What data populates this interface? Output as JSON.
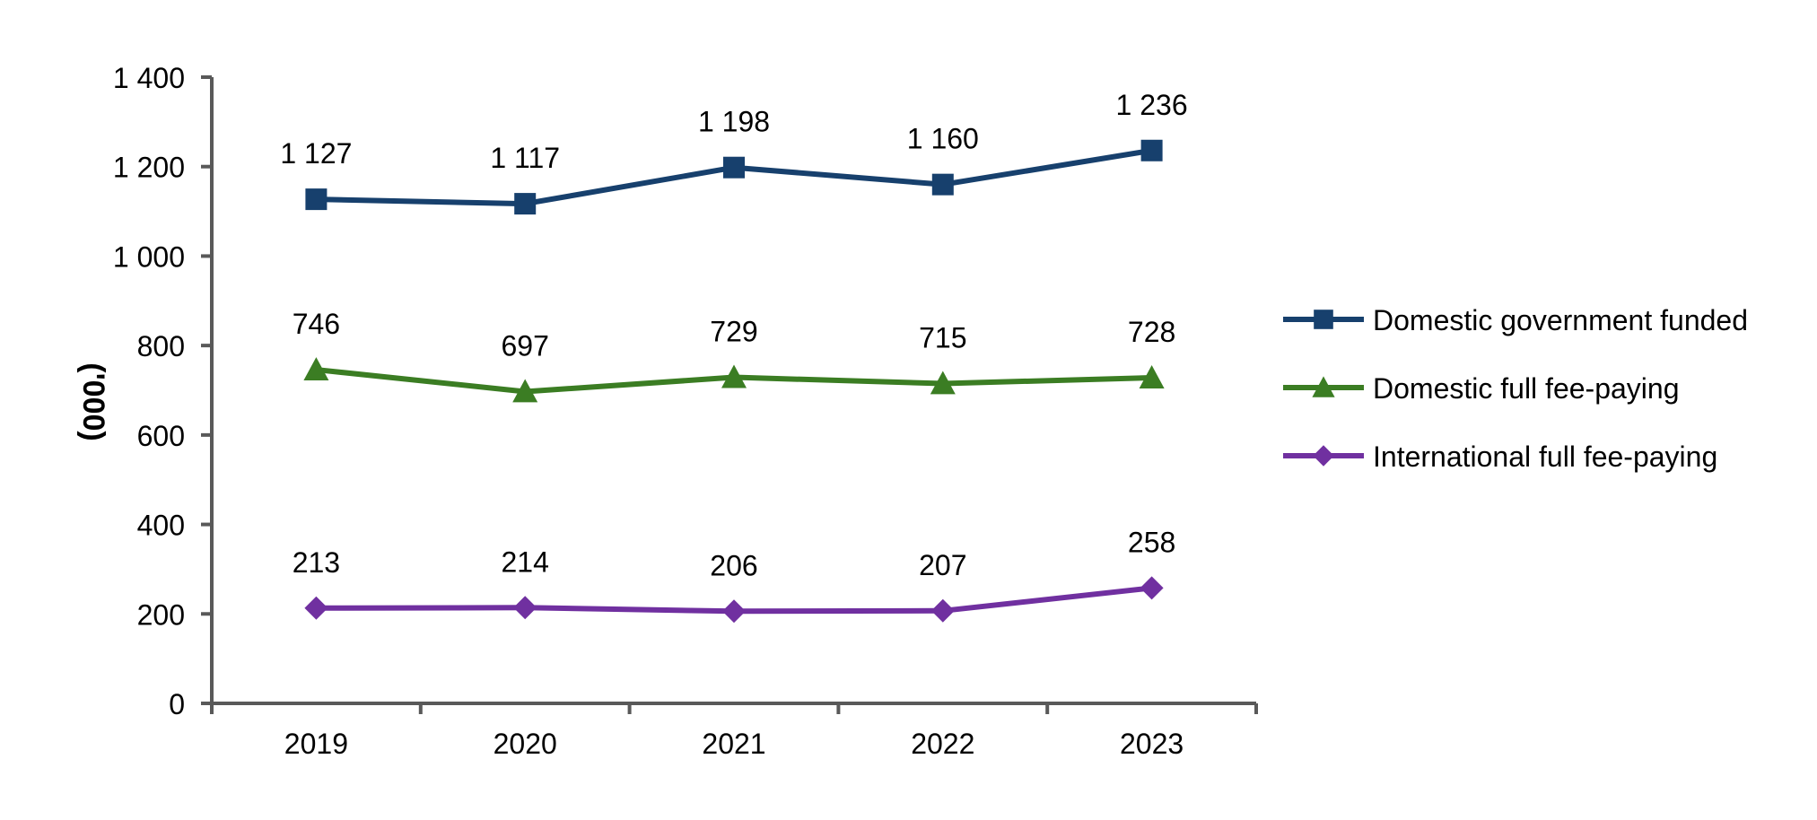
{
  "chart_data": {
    "type": "line",
    "title": "",
    "xlabel": "",
    "ylabel": "('000)",
    "ylim": [
      0,
      1400
    ],
    "yticks": [
      0,
      200,
      400,
      600,
      800,
      1000,
      1200,
      1400
    ],
    "ytick_labels": [
      "0",
      "200",
      "400",
      "600",
      "800",
      "1 000",
      "1 200",
      "1 400"
    ],
    "categories": [
      "2019",
      "2020",
      "2021",
      "2022",
      "2023"
    ],
    "grid": false,
    "legend_position": "right",
    "series": [
      {
        "name": "Domestic government funded",
        "values": [
          1127,
          1117,
          1198,
          1160,
          1236
        ],
        "labels": [
          "1 127",
          "1 117",
          "1 198",
          "1 160",
          "1 236"
        ],
        "color": "#17406D",
        "marker": "square"
      },
      {
        "name": "Domestic full fee-paying",
        "values": [
          746,
          697,
          729,
          715,
          728
        ],
        "labels": [
          "746",
          "697",
          "729",
          "715",
          "728"
        ],
        "color": "#3B7D23",
        "marker": "triangle"
      },
      {
        "name": "International full fee-paying",
        "values": [
          213,
          214,
          206,
          207,
          258
        ],
        "labels": [
          "213",
          "214",
          "206",
          "207",
          "258"
        ],
        "color": "#7030A0",
        "marker": "diamond"
      }
    ],
    "axis_color": "#595959"
  }
}
